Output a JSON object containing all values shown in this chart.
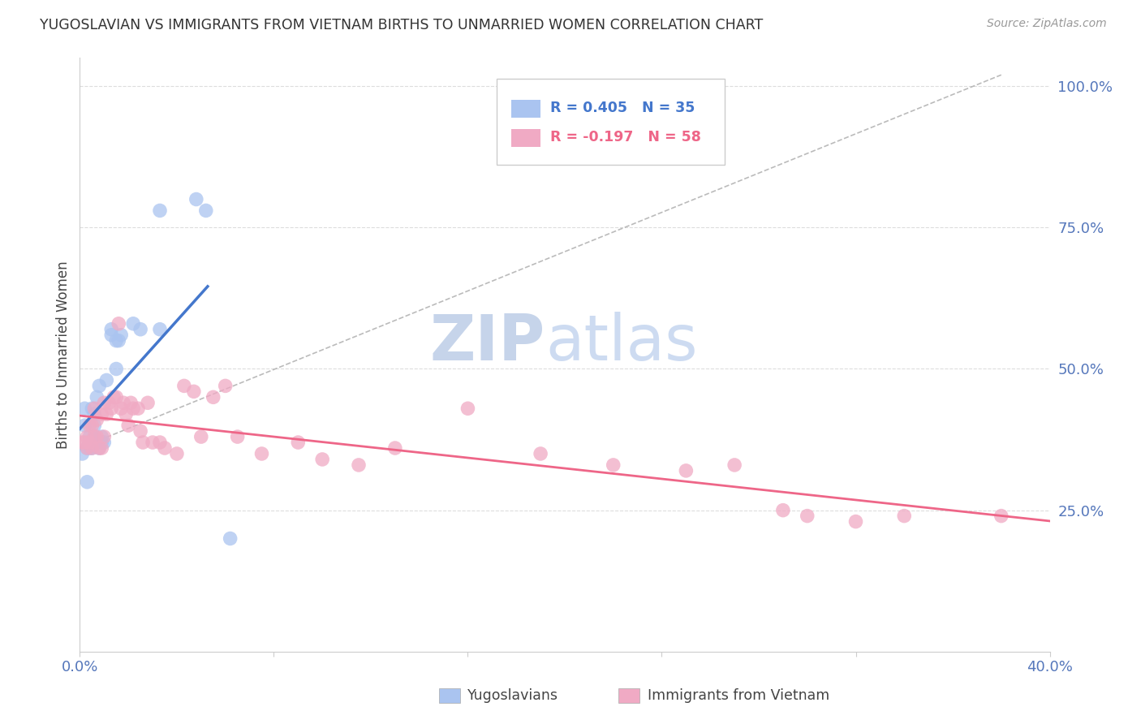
{
  "title": "YUGOSLAVIAN VS IMMIGRANTS FROM VIETNAM BIRTHS TO UNMARRIED WOMEN CORRELATION CHART",
  "source": "Source: ZipAtlas.com",
  "ylabel": "Births to Unmarried Women",
  "legend_blue_label": "Yugoslavians",
  "legend_pink_label": "Immigrants from Vietnam",
  "blue_color": "#aac4f0",
  "pink_color": "#f0aac4",
  "blue_line_color": "#4477cc",
  "pink_line_color": "#ee6688",
  "legend_text_blue": "#4477cc",
  "legend_text_pink": "#ee6688",
  "right_tick_color": "#5577bb",
  "bottom_tick_color": "#5577bb",
  "grid_color": "#dddddd",
  "watermark_zip_color": "#c0d0e8",
  "watermark_atlas_color": "#c8d8f0",
  "blue_scatter_x": [
    0.001,
    0.002,
    0.002,
    0.003,
    0.003,
    0.004,
    0.004,
    0.004,
    0.005,
    0.005,
    0.005,
    0.006,
    0.006,
    0.006,
    0.007,
    0.007,
    0.008,
    0.008,
    0.009,
    0.009,
    0.01,
    0.011,
    0.013,
    0.013,
    0.015,
    0.015,
    0.016,
    0.017,
    0.022,
    0.025,
    0.033,
    0.033,
    0.048,
    0.052,
    0.062
  ],
  "blue_scatter_y": [
    0.35,
    0.43,
    0.4,
    0.3,
    0.36,
    0.36,
    0.37,
    0.38,
    0.36,
    0.37,
    0.43,
    0.38,
    0.4,
    0.42,
    0.37,
    0.45,
    0.36,
    0.47,
    0.37,
    0.38,
    0.37,
    0.48,
    0.56,
    0.57,
    0.55,
    0.5,
    0.55,
    0.56,
    0.58,
    0.57,
    0.57,
    0.78,
    0.8,
    0.78,
    0.2
  ],
  "pink_scatter_x": [
    0.001,
    0.002,
    0.003,
    0.003,
    0.004,
    0.004,
    0.005,
    0.005,
    0.006,
    0.006,
    0.007,
    0.007,
    0.008,
    0.009,
    0.009,
    0.01,
    0.01,
    0.011,
    0.012,
    0.013,
    0.014,
    0.015,
    0.016,
    0.017,
    0.018,
    0.019,
    0.02,
    0.021,
    0.022,
    0.024,
    0.025,
    0.026,
    0.028,
    0.03,
    0.033,
    0.035,
    0.04,
    0.043,
    0.047,
    0.05,
    0.055,
    0.06,
    0.065,
    0.075,
    0.09,
    0.1,
    0.115,
    0.13,
    0.16,
    0.19,
    0.22,
    0.25,
    0.27,
    0.29,
    0.3,
    0.32,
    0.34,
    0.38
  ],
  "pink_scatter_y": [
    0.37,
    0.37,
    0.36,
    0.38,
    0.37,
    0.4,
    0.36,
    0.4,
    0.38,
    0.43,
    0.38,
    0.41,
    0.36,
    0.36,
    0.42,
    0.38,
    0.44,
    0.42,
    0.44,
    0.43,
    0.45,
    0.45,
    0.58,
    0.43,
    0.44,
    0.42,
    0.4,
    0.44,
    0.43,
    0.43,
    0.39,
    0.37,
    0.44,
    0.37,
    0.37,
    0.36,
    0.35,
    0.47,
    0.46,
    0.38,
    0.45,
    0.47,
    0.38,
    0.35,
    0.37,
    0.34,
    0.33,
    0.36,
    0.43,
    0.35,
    0.33,
    0.32,
    0.33,
    0.25,
    0.24,
    0.23,
    0.24,
    0.24
  ],
  "xmin": 0.0,
  "xmax": 0.4,
  "ymin": 0.0,
  "ymax": 1.05,
  "x_ticks": [
    0.0,
    0.08,
    0.16,
    0.24,
    0.32,
    0.4
  ],
  "y_ticks": [
    0.0,
    0.25,
    0.5,
    0.75,
    1.0
  ],
  "y_tick_labels": [
    "",
    "25.0%",
    "50.0%",
    "75.0%",
    "100.0%"
  ]
}
